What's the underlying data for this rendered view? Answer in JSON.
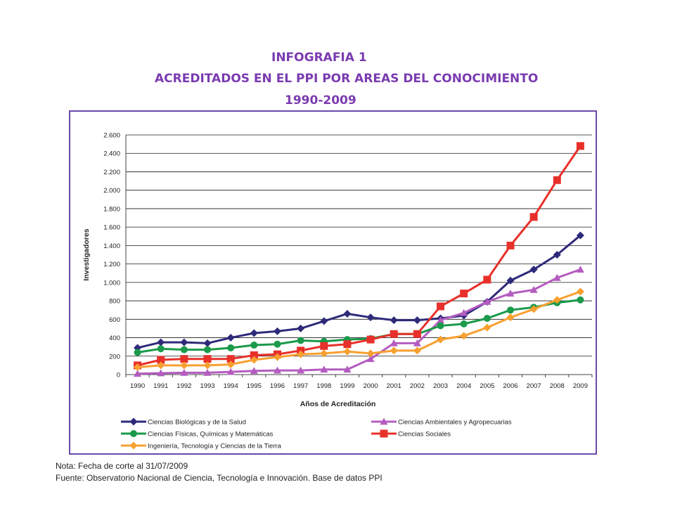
{
  "titles": {
    "line1": "INFOGRAFIA 1",
    "line2": "ACREDITADOS EN EL PPI POR AREAS DEL CONOCIMIENTO",
    "line3": "1990-2009"
  },
  "notes": {
    "nota": "Nota: Fecha de corte al 31/07/2009",
    "fuente": "Fuente: Observatorio Nacional de Ciencia, Tecnología e Innovación. Base de datos PPI"
  },
  "chart_data": {
    "type": "line",
    "xlabel": "Años de Acreditación",
    "ylabel": "Investigadores",
    "ylim": [
      0,
      2600
    ],
    "yticks": [
      0,
      200,
      400,
      600,
      800,
      1000,
      1200,
      1400,
      1600,
      1800,
      2000,
      2200,
      2400,
      2600
    ],
    "ytick_labels": [
      "0",
      "200",
      "400",
      "600",
      "800",
      "1.000",
      "1.200",
      "1.400",
      "1.600",
      "1.800",
      "2.000",
      "2.200",
      "2.400",
      "2.600"
    ],
    "grid": true,
    "legend_position": "bottom",
    "categories": [
      "1990",
      "1991",
      "1992",
      "1993",
      "1994",
      "1995",
      "1996",
      "1997",
      "1998",
      "1999",
      "2000",
      "2001",
      "2002",
      "2003",
      "2004",
      "2005",
      "2006",
      "2007",
      "2008",
      "2009"
    ],
    "series": [
      {
        "name": "Ciencias Biológicas y de la Salud",
        "color": "#2e2a7a",
        "marker": "diamond",
        "values": [
          290,
          350,
          350,
          340,
          400,
          450,
          470,
          500,
          580,
          660,
          620,
          590,
          590,
          610,
          640,
          790,
          1020,
          1140,
          1300,
          1510
        ]
      },
      {
        "name": "Ciencias Ambientales y Agropecuarias",
        "color": "#b45cc0",
        "marker": "triangle",
        "values": [
          10,
          15,
          20,
          20,
          30,
          40,
          45,
          45,
          55,
          55,
          170,
          340,
          340,
          590,
          670,
          790,
          880,
          920,
          1050,
          1140
        ]
      },
      {
        "name": "Ciencias Físicas, Químicas y Matemáticas",
        "color": "#1a9a4a",
        "marker": "circle",
        "values": [
          240,
          280,
          270,
          270,
          290,
          320,
          330,
          370,
          360,
          380,
          390,
          440,
          440,
          530,
          550,
          610,
          700,
          730,
          780,
          810
        ]
      },
      {
        "name": "Ciencias Sociales",
        "color": "#e8302a",
        "marker": "square",
        "values": [
          100,
          160,
          170,
          170,
          170,
          210,
          220,
          260,
          310,
          330,
          380,
          440,
          440,
          740,
          880,
          1030,
          1400,
          1710,
          2110,
          2480
        ]
      },
      {
        "name": "Ingeniería, Tecnología y Ciencias de la Tierra",
        "color": "#f7a030",
        "marker": "diamond",
        "values": [
          80,
          100,
          100,
          100,
          110,
          160,
          190,
          220,
          230,
          250,
          230,
          260,
          260,
          380,
          420,
          510,
          620,
          710,
          810,
          900
        ]
      }
    ]
  }
}
